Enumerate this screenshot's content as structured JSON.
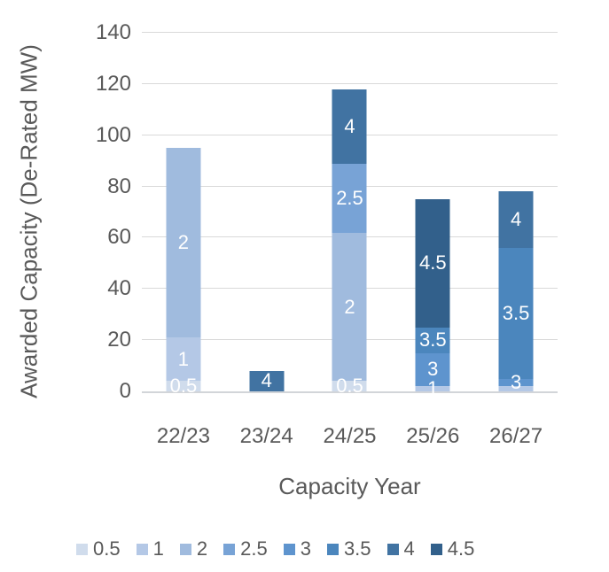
{
  "chart_data": {
    "type": "bar",
    "stacked": true,
    "title": "",
    "xlabel": "Capacity Year",
    "ylabel": "Awarded Capacity (De-Rated MW)",
    "ylim": [
      0,
      140
    ],
    "yticks": [
      0,
      20,
      40,
      60,
      80,
      100,
      120,
      140
    ],
    "grid": "horizontal",
    "legend_position": "bottom",
    "categories": [
      "22/23",
      "23/24",
      "24/25",
      "25/26",
      "26/27"
    ],
    "series_keys": [
      "0.5",
      "1",
      "2",
      "2.5",
      "3",
      "3.5",
      "4",
      "4.5"
    ],
    "colors": {
      "0.5": "#d0dcec",
      "1": "#b4c8e6",
      "2": "#a0bbde",
      "2.5": "#78a3d6",
      "3": "#5e94ce",
      "3.5": "#4b86bd",
      "4": "#4173a2",
      "4.5": "#32608b"
    },
    "series": [
      {
        "name": "0.5",
        "values": [
          4,
          0,
          4,
          0,
          0
        ]
      },
      {
        "name": "1",
        "values": [
          17,
          0,
          0,
          2,
          2
        ]
      },
      {
        "name": "2",
        "values": [
          74,
          0,
          58,
          0,
          0
        ]
      },
      {
        "name": "2.5",
        "values": [
          0,
          0,
          27,
          0,
          0
        ]
      },
      {
        "name": "3",
        "values": [
          0,
          0,
          0,
          13,
          3
        ]
      },
      {
        "name": "3.5",
        "values": [
          0,
          0,
          0,
          10,
          51
        ]
      },
      {
        "name": "4",
        "values": [
          0,
          8,
          29,
          0,
          22
        ]
      },
      {
        "name": "4.5",
        "values": [
          0,
          0,
          0,
          50,
          0
        ]
      }
    ],
    "stack_totals": [
      95,
      8,
      118,
      75,
      78
    ],
    "data_label_color": "#ffffff",
    "hidden_segment_labels": [
      {
        "series": "1",
        "category": "26/27"
      }
    ]
  },
  "styles": {
    "background": "#ffffff",
    "text_color": "#595959",
    "grid_color": "#d9d9d9",
    "axis_line_color": "#d2d5d9"
  }
}
